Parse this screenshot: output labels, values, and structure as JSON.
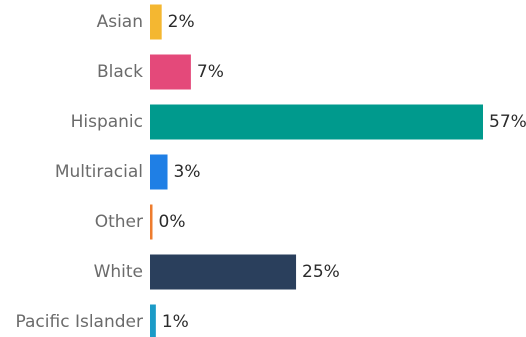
{
  "chart_data": {
    "type": "bar",
    "orientation": "horizontal",
    "categories": [
      "Asian",
      "Black",
      "Hispanic",
      "Multiracial",
      "Other",
      "White",
      "Pacific Islander"
    ],
    "values": [
      2,
      7,
      57,
      3,
      0,
      25,
      1
    ],
    "value_labels": [
      "2%",
      "7%",
      "57%",
      "3%",
      "0%",
      "25%",
      "1%"
    ],
    "colors": [
      "#F4B731",
      "#E4497A",
      "#009A8D",
      "#1F7FE5",
      "#EE7C2E",
      "#2A3F5C",
      "#1B9BC7"
    ],
    "xlim": [
      0,
      57
    ],
    "title": "",
    "xlabel": "",
    "ylabel": "",
    "grid": false,
    "legend": "none"
  }
}
